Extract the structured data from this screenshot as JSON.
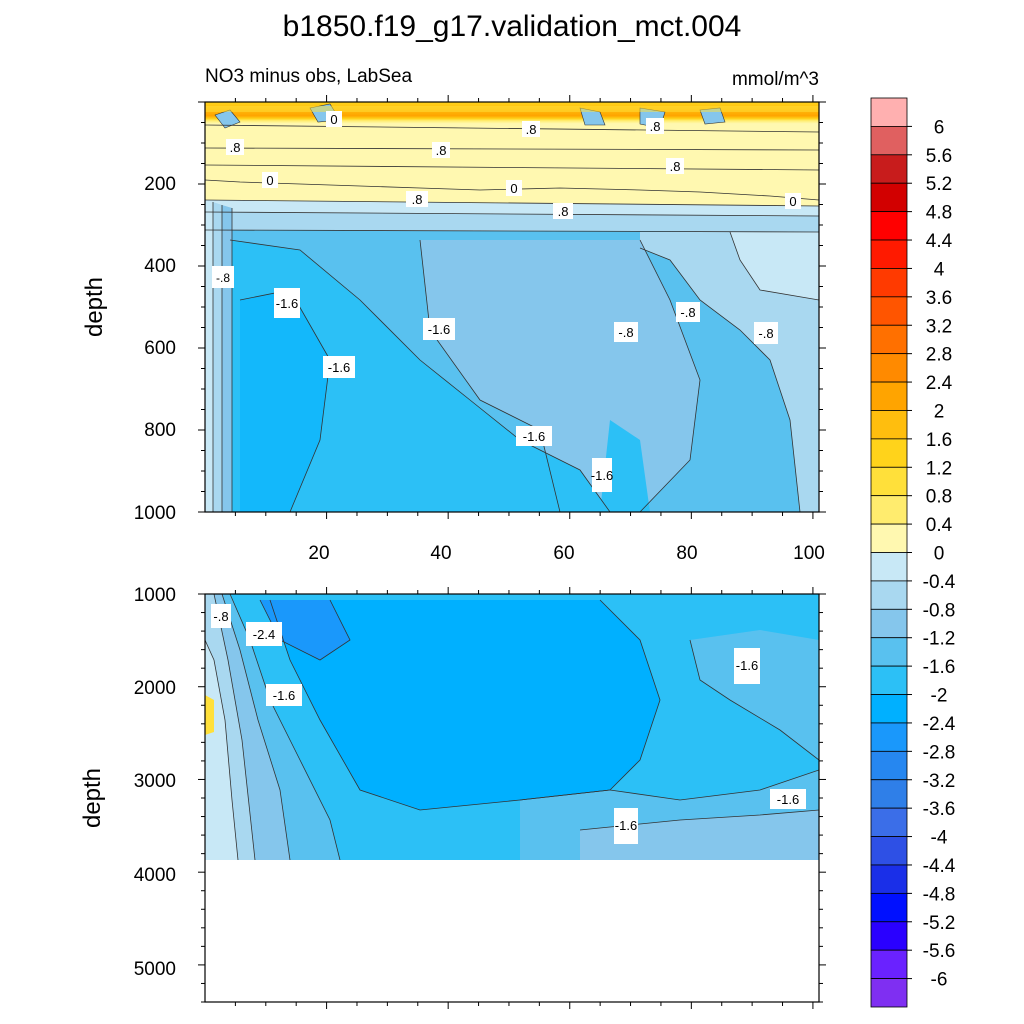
{
  "title": "b1850.f19_g17.validation_mct.004",
  "subtitle_left": "NO3 minus obs, LabSea",
  "subtitle_right": "mmol/m^3",
  "colors": {
    "levels": [
      "#7f2ff2",
      "#6a22ff",
      "#2a00ff",
      "#0010ff",
      "#1a2fe8",
      "#2e50e5",
      "#3b6ee8",
      "#2f7fe8",
      "#2687f0",
      "#1a98fb",
      "#00b0ff",
      "#2cc0f6",
      "#59c1ef",
      "#85c6ec",
      "#a9d8f0",
      "#c8e8f6",
      "#fff8b0",
      "#ffec6e",
      "#ffe03a",
      "#ffd31b",
      "#ffbe0e",
      "#ffa400",
      "#ff8a00",
      "#ff7000",
      "#ff5500",
      "#ff3a00",
      "#ff1a00",
      "#ff0000",
      "#d20000",
      "#c81c1c",
      "#e06060",
      "#ffb0b0"
    ],
    "line": "#333333"
  },
  "chart_data": [
    {
      "type": "heatmap",
      "panel": "upper",
      "variable": "NO3 minus obs",
      "region": "LabSea",
      "units": "mmol/m^3",
      "xlabel": "",
      "ylabel": "depth",
      "xlim": [
        0,
        101
      ],
      "ylim": [
        1000,
        0
      ],
      "x_ticks": [
        20,
        40,
        60,
        80,
        100
      ],
      "y_ticks": [
        200,
        400,
        600,
        800,
        1000
      ],
      "grid": false,
      "contour_labels": [
        "0",
        ".8",
        ".8",
        ".8",
        ".8",
        ".8",
        "0",
        ".8",
        "0",
        ".8",
        "0",
        ".8",
        "-.8",
        "-1.6",
        "-1.6",
        "-1.6",
        "-.8",
        "-.8",
        "-.8",
        "-1.6",
        "-1.6"
      ],
      "zones": [
        {
          "depth_range": [
            0,
            60
          ],
          "value_range": [
            -0.8,
            1.2
          ]
        },
        {
          "depth_range": [
            60,
            160
          ],
          "value_range": [
            0.8,
            2.0
          ]
        },
        {
          "depth_range": [
            160,
            240
          ],
          "value_range": [
            -0.4,
            0.4
          ]
        },
        {
          "depth_range": [
            240,
            1000
          ],
          "value_range": [
            -2.4,
            -0.4
          ]
        }
      ]
    },
    {
      "type": "heatmap",
      "panel": "lower",
      "variable": "NO3 minus obs",
      "region": "LabSea",
      "units": "mmol/m^3",
      "xlabel": "",
      "ylabel": "depth",
      "xlim": [
        0,
        101
      ],
      "ylim": [
        5400,
        1000
      ],
      "y_ticks": [
        1000,
        2000,
        3000,
        4000,
        5000
      ],
      "data_max_depth": 3900,
      "grid": false,
      "contour_labels": [
        "-.8",
        "-2.4",
        "-1.6",
        "-1.6",
        "-1.6",
        "-1.6"
      ],
      "zones": [
        {
          "depth_range": [
            1000,
            3900
          ],
          "value_range": [
            -2.8,
            -0.4
          ]
        }
      ]
    }
  ],
  "colorbar": {
    "labels": [
      "6",
      "5.6",
      "5.2",
      "4.8",
      "4.4",
      "4",
      "3.6",
      "3.2",
      "2.8",
      "2.4",
      "2",
      "1.6",
      "1.2",
      "0.8",
      "0.4",
      "0",
      "-0.4",
      "-0.8",
      "-1.2",
      "-1.6",
      "-2",
      "-2.4",
      "-2.8",
      "-3.2",
      "-3.6",
      "-4",
      "-4.4",
      "-4.8",
      "-5.2",
      "-5.6",
      "-6"
    ]
  }
}
